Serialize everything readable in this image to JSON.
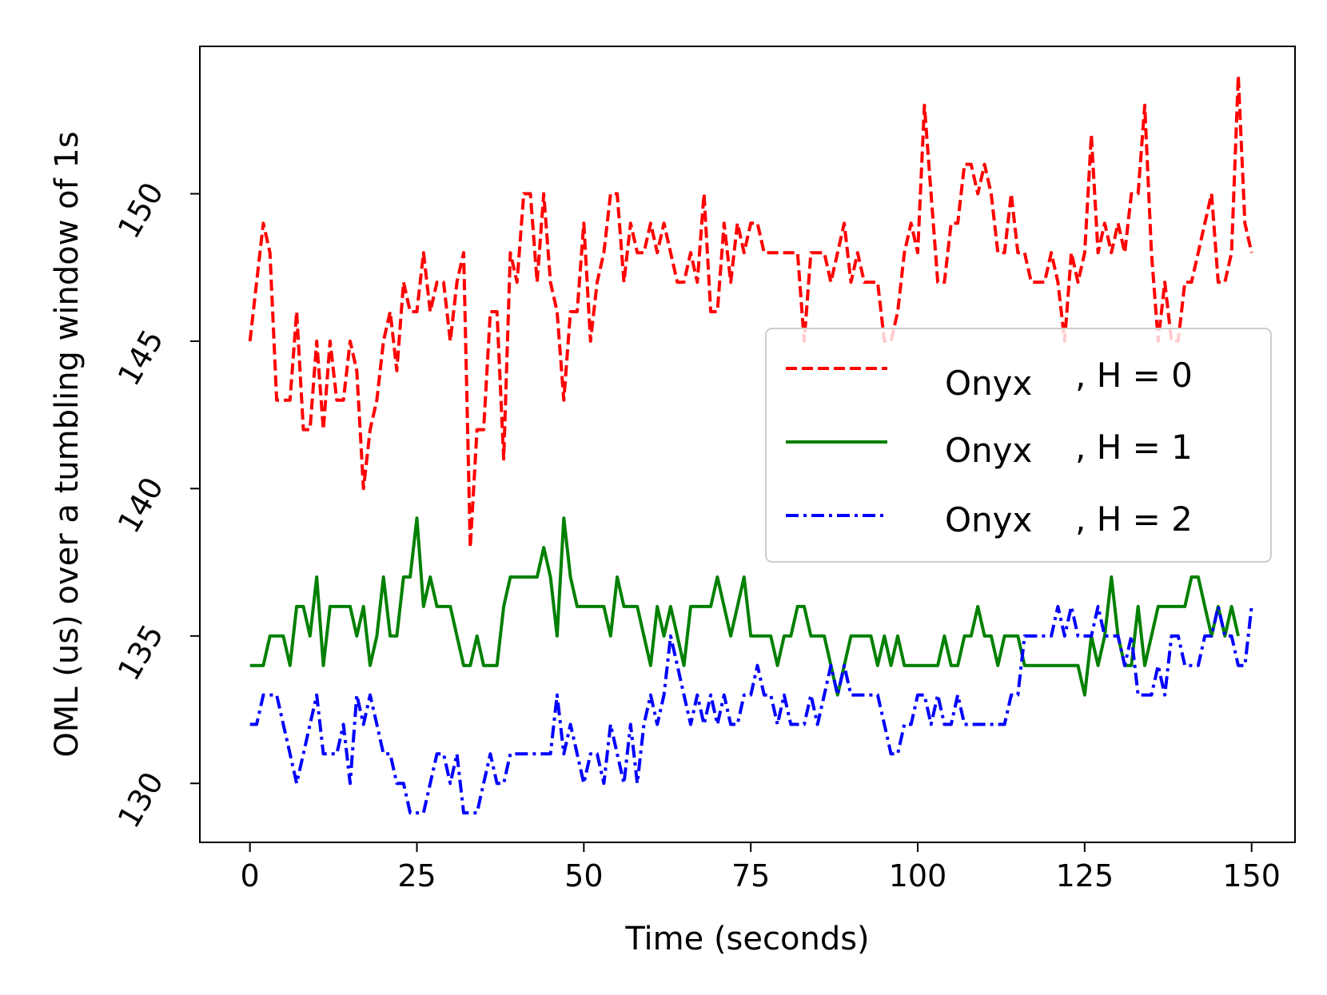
{
  "chart_data": {
    "type": "line",
    "title": "",
    "xlabel": "Time (seconds)",
    "ylabel": "OML (us) over a tumbling window of 1s",
    "xlim": [
      -7.5,
      156.5
    ],
    "ylim": [
      128.0,
      155.0
    ],
    "xticks": [
      0,
      25,
      50,
      75,
      100,
      125,
      150
    ],
    "yticks": [
      130,
      135,
      140,
      145,
      150
    ],
    "grid": false,
    "legend_position": "center-right",
    "series": [
      {
        "name": "Onyx",
        "suffix": ", H = 0",
        "color": "#ff0000",
        "dash": "dashed",
        "values": [
          145,
          147,
          149,
          148,
          143,
          143,
          143,
          146,
          142,
          142,
          145,
          142,
          145,
          143,
          143,
          145,
          144,
          140,
          142,
          143,
          145,
          146,
          144,
          147,
          146,
          146,
          148,
          146,
          147,
          147,
          145,
          147,
          148,
          138,
          142,
          142,
          146,
          146,
          141,
          148,
          147,
          150,
          150,
          147,
          150,
          147,
          146,
          143,
          146,
          146,
          149,
          145,
          147,
          148,
          150,
          150,
          147,
          149,
          148,
          148,
          149,
          148,
          149,
          148,
          147,
          147,
          148,
          147,
          150,
          146,
          146,
          149,
          147,
          149,
          148,
          149,
          149,
          148,
          148,
          148,
          148,
          148,
          148,
          145,
          148,
          148,
          148,
          147,
          148,
          149,
          147,
          148,
          147,
          147,
          147,
          145,
          145,
          146,
          148,
          149,
          148,
          153,
          150,
          147,
          147,
          149,
          149,
          151,
          151,
          150,
          151,
          150,
          148,
          148,
          150,
          148,
          148,
          147,
          147,
          147,
          148,
          147,
          145,
          148,
          147,
          148,
          152,
          148,
          149,
          148,
          149,
          148,
          150,
          150,
          153,
          148,
          145,
          147,
          145,
          145,
          147,
          147,
          148,
          149,
          150,
          147,
          147,
          148,
          154,
          149,
          148
        ]
      },
      {
        "name": "Onyx",
        "suffix": ", H = 1",
        "color": "#008000",
        "dash": "solid",
        "values": [
          134,
          134,
          134,
          135,
          135,
          135,
          134,
          136,
          136,
          135,
          137,
          134,
          136,
          136,
          136,
          136,
          135,
          136,
          134,
          135,
          137,
          135,
          135,
          137,
          137,
          139,
          136,
          137,
          136,
          136,
          136,
          135,
          134,
          134,
          135,
          134,
          134,
          134,
          136,
          137,
          137,
          137,
          137,
          137,
          138,
          137,
          135,
          139,
          137,
          136,
          136,
          136,
          136,
          136,
          135,
          137,
          136,
          136,
          136,
          135,
          134,
          136,
          135,
          136,
          135,
          134,
          136,
          136,
          136,
          136,
          137,
          136,
          135,
          136,
          137,
          135,
          135,
          135,
          135,
          134,
          135,
          135,
          136,
          136,
          135,
          135,
          135,
          134,
          133,
          134,
          135,
          135,
          135,
          135,
          134,
          135,
          134,
          135,
          134,
          134,
          134,
          134,
          134,
          134,
          135,
          134,
          134,
          135,
          135,
          136,
          135,
          135,
          134,
          135,
          135,
          135,
          134,
          134,
          134,
          134,
          134,
          134,
          134,
          134,
          134,
          133,
          135,
          134,
          135,
          137,
          135,
          134,
          134,
          136,
          134,
          135,
          136,
          136,
          136,
          136,
          136,
          137,
          137,
          136,
          135,
          136,
          135,
          136,
          135
        ]
      },
      {
        "name": "Onyx",
        "suffix": ", H = 2",
        "color": "#0000ff",
        "dash": "dashdot",
        "values": [
          132,
          132,
          133,
          133,
          133,
          132,
          131,
          130,
          131,
          132,
          133,
          131,
          131,
          131,
          132,
          130,
          133,
          132,
          133,
          132,
          131,
          131,
          130,
          130,
          129,
          129,
          129,
          130,
          131,
          131,
          130,
          131,
          129,
          129,
          129,
          130,
          131,
          130,
          130,
          131,
          131,
          131,
          131,
          131,
          131,
          131,
          133,
          131,
          132,
          131,
          130,
          131,
          131,
          130,
          132,
          131,
          130,
          132,
          130,
          132,
          133,
          132,
          133,
          135,
          134,
          133,
          132,
          133,
          132,
          133,
          132,
          133,
          132,
          132,
          133,
          133,
          134,
          133,
          133,
          132,
          133,
          132,
          132,
          132,
          133,
          132,
          133,
          134,
          133,
          134,
          133,
          133,
          133,
          133,
          133,
          132,
          131,
          131,
          132,
          132,
          133,
          133,
          132,
          133,
          132,
          132,
          133,
          132,
          132,
          132,
          132,
          132,
          132,
          132,
          133,
          133,
          135,
          135,
          135,
          135,
          135,
          136,
          135,
          136,
          135,
          135,
          135,
          136,
          135,
          135,
          135,
          134,
          135,
          133,
          133,
          133,
          134,
          133,
          135,
          135,
          134,
          134,
          134,
          135,
          135,
          136,
          135,
          135,
          134,
          134,
          136
        ]
      }
    ]
  }
}
